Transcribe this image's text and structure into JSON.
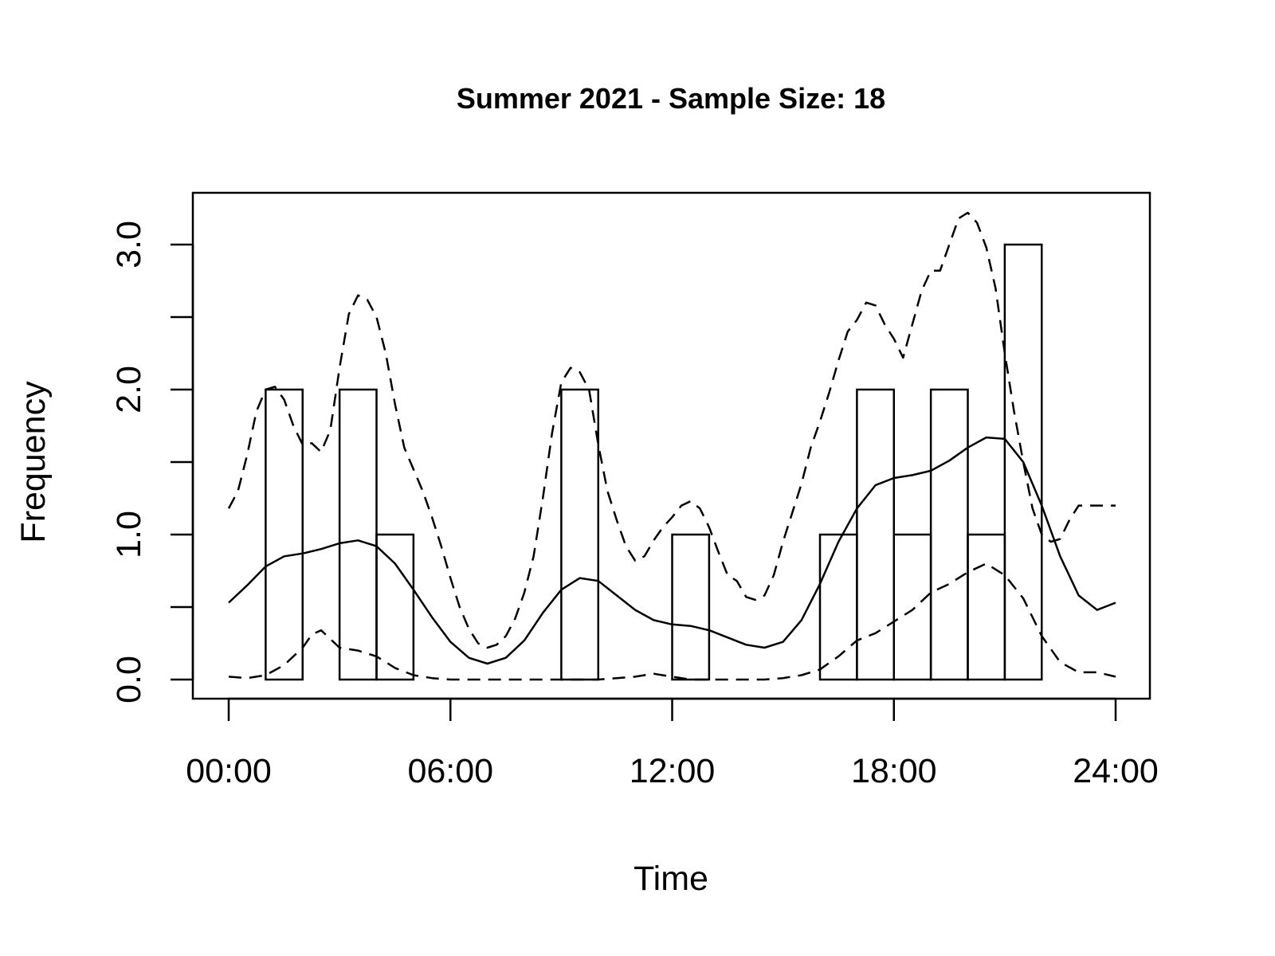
{
  "chart_data": {
    "type": "histogram",
    "title": "Summer 2021 - Sample Size: 18",
    "xlabel": "Time",
    "ylabel": "Frequency",
    "xlim": [
      0,
      24
    ],
    "ylim": [
      0,
      3.0
    ],
    "x_ticks": [
      {
        "value": 0,
        "label": "00:00"
      },
      {
        "value": 6,
        "label": "06:00"
      },
      {
        "value": 12,
        "label": "12:00"
      },
      {
        "value": 18,
        "label": "18:00"
      },
      {
        "value": 24,
        "label": "24:00"
      }
    ],
    "y_ticks": [
      {
        "value": 0.0,
        "label": "0.0"
      },
      {
        "value": 0.5,
        "label": ""
      },
      {
        "value": 1.0,
        "label": "1.0"
      },
      {
        "value": 1.5,
        "label": ""
      },
      {
        "value": 2.0,
        "label": "2.0"
      },
      {
        "value": 2.5,
        "label": ""
      },
      {
        "value": 3.0,
        "label": "3.0"
      }
    ],
    "bins": {
      "breaks": [
        0,
        1,
        2,
        3,
        4,
        5,
        6,
        7,
        8,
        9,
        10,
        11,
        12,
        13,
        14,
        15,
        16,
        17,
        18,
        19,
        20,
        21,
        22,
        23,
        24
      ],
      "counts": [
        0,
        2,
        0,
        2,
        1,
        0,
        0,
        0,
        0,
        2,
        0,
        0,
        1,
        0,
        0,
        0,
        1,
        2,
        1,
        2,
        1,
        3,
        0,
        0
      ]
    },
    "series": [
      {
        "style": "solid",
        "x": [
          0,
          0.5,
          1,
          1.5,
          2,
          2.5,
          3,
          3.5,
          4,
          4.5,
          5,
          5.5,
          6,
          6.5,
          7,
          7.5,
          8,
          8.5,
          9,
          9.5,
          10,
          10.5,
          11,
          11.5,
          12,
          12.5,
          13,
          13.5,
          14,
          14.5,
          15,
          15.5,
          16,
          16.5,
          17,
          17.5,
          18,
          18.5,
          19,
          19.5,
          20,
          20.5,
          21,
          21.5,
          22,
          22.5,
          23,
          23.5,
          24
        ],
        "y": [
          0.53,
          0.65,
          0.78,
          0.85,
          0.87,
          0.9,
          0.94,
          0.96,
          0.92,
          0.8,
          0.62,
          0.43,
          0.26,
          0.15,
          0.11,
          0.15,
          0.27,
          0.46,
          0.62,
          0.7,
          0.68,
          0.58,
          0.48,
          0.41,
          0.38,
          0.37,
          0.34,
          0.29,
          0.24,
          0.22,
          0.26,
          0.41,
          0.66,
          0.95,
          1.18,
          1.34,
          1.39,
          1.41,
          1.44,
          1.51,
          1.6,
          1.67,
          1.66,
          1.5,
          1.2,
          0.85,
          0.58,
          0.48,
          0.53
        ]
      },
      {
        "style": "dashed",
        "x": [
          0,
          0.25,
          0.5,
          0.75,
          1,
          1.25,
          1.5,
          1.75,
          2,
          2.25,
          2.5,
          2.75,
          3,
          3.25,
          3.5,
          3.75,
          4,
          4.25,
          4.5,
          4.75,
          5,
          5.25,
          5.5,
          5.75,
          6,
          6.25,
          6.5,
          6.75,
          7,
          7.25,
          7.5,
          7.75,
          8,
          8.25,
          8.5,
          8.75,
          9,
          9.25,
          9.5,
          9.75,
          10,
          10.25,
          10.5,
          10.75,
          11,
          11.25,
          11.5,
          11.75,
          12,
          12.25,
          12.5,
          12.75,
          13,
          13.25,
          13.5,
          13.75,
          14,
          14.25,
          14.5,
          14.75,
          15,
          15.25,
          15.5,
          15.75,
          16,
          16.25,
          16.5,
          16.75,
          17,
          17.25,
          17.5,
          17.75,
          18,
          18.25,
          18.5,
          18.75,
          19,
          19.25,
          19.5,
          19.75,
          20,
          20.25,
          20.5,
          20.75,
          21,
          21.25,
          21.5,
          21.75,
          22,
          22.25,
          22.5,
          22.75,
          23,
          23.25,
          23.5,
          23.75,
          24
        ],
        "y": [
          1.18,
          1.3,
          1.55,
          1.85,
          2.0,
          2.02,
          1.93,
          1.75,
          1.62,
          1.63,
          1.57,
          1.72,
          2.15,
          2.52,
          2.65,
          2.62,
          2.5,
          2.25,
          1.9,
          1.6,
          1.45,
          1.3,
          1.12,
          0.92,
          0.7,
          0.5,
          0.35,
          0.25,
          0.22,
          0.24,
          0.3,
          0.42,
          0.6,
          0.85,
          1.25,
          1.7,
          2.05,
          2.15,
          2.12,
          2.0,
          1.62,
          1.3,
          1.1,
          0.92,
          0.82,
          0.85,
          0.96,
          1.05,
          1.12,
          1.2,
          1.23,
          1.18,
          1.05,
          0.88,
          0.72,
          0.68,
          0.57,
          0.55,
          0.58,
          0.72,
          0.95,
          1.15,
          1.35,
          1.6,
          1.78,
          1.98,
          2.2,
          2.4,
          2.48,
          2.6,
          2.58,
          2.45,
          2.35,
          2.22,
          2.45,
          2.68,
          2.82,
          2.82,
          3.0,
          3.18,
          3.22,
          3.15,
          2.98,
          2.7,
          2.25,
          1.85,
          1.5,
          1.18,
          1.0,
          0.95,
          0.97,
          1.1,
          1.2,
          1.2,
          1.2,
          1.2,
          1.2
        ]
      },
      {
        "style": "dashed",
        "x": [
          0,
          0.5,
          1,
          1.5,
          2,
          2.25,
          2.5,
          2.75,
          3,
          3.5,
          4,
          4.5,
          5,
          5.5,
          6,
          7,
          8,
          9,
          10,
          10.5,
          11,
          11.5,
          12,
          12.5,
          13,
          13.5,
          14,
          14.5,
          15,
          15.5,
          16,
          16.5,
          17,
          17.5,
          18,
          18.5,
          19,
          19.5,
          20,
          20.5,
          21,
          21.5,
          22,
          22.5,
          23,
          23.5,
          24
        ],
        "y": [
          0.02,
          0.01,
          0.03,
          0.1,
          0.22,
          0.31,
          0.34,
          0.28,
          0.22,
          0.2,
          0.16,
          0.08,
          0.03,
          0.01,
          0.0,
          0.0,
          0.0,
          0.0,
          0.0,
          0.01,
          0.02,
          0.04,
          0.02,
          0.0,
          0.0,
          0.0,
          0.0,
          0.0,
          0.01,
          0.03,
          0.07,
          0.16,
          0.27,
          0.32,
          0.4,
          0.48,
          0.6,
          0.66,
          0.74,
          0.8,
          0.72,
          0.56,
          0.3,
          0.12,
          0.05,
          0.05,
          0.02
        ]
      }
    ],
    "grid": false,
    "legend": "none"
  }
}
